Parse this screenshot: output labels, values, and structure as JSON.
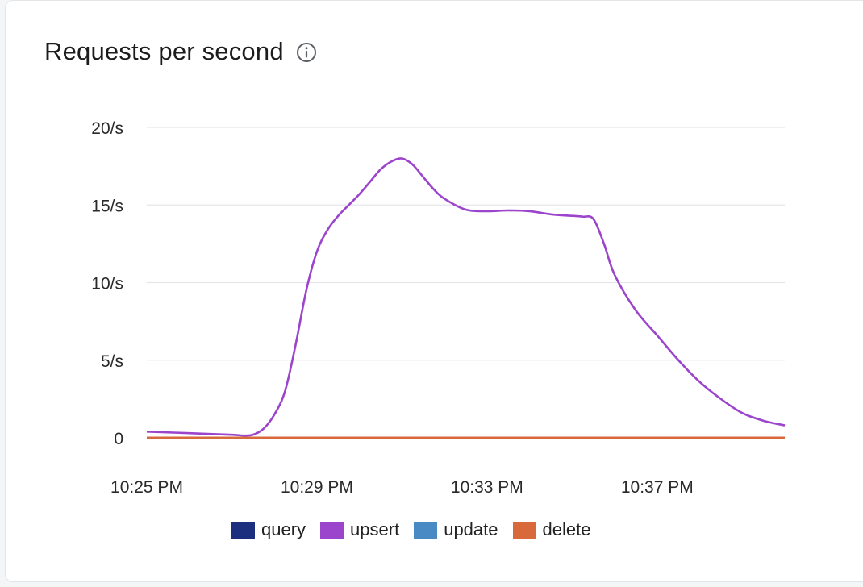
{
  "card": {
    "title": "Requests per second",
    "info_icon": "info-circle-icon"
  },
  "chart_data": {
    "type": "line",
    "title": "Requests per second",
    "xlabel": "",
    "ylabel": "",
    "x_ticks": [
      "10:25 PM",
      "10:29 PM",
      "10:33 PM",
      "10:37 PM"
    ],
    "y_ticks": [
      "0",
      "5/s",
      "10/s",
      "15/s",
      "20/s"
    ],
    "xlim_minutes_since_10_25": [
      0,
      15
    ],
    "ylim": [
      0,
      20
    ],
    "grid": true,
    "legend_position": "bottom",
    "series": [
      {
        "name": "query",
        "color": "#1b2f7e",
        "x": [
          0,
          15
        ],
        "y": [
          0,
          0
        ]
      },
      {
        "name": "upsert",
        "color": "#9b44cc",
        "x": [
          0,
          1,
          2,
          2.25,
          2.5,
          2.75,
          3,
          3.25,
          3.5,
          3.75,
          4,
          4.25,
          4.5,
          4.75,
          5,
          5.25,
          5.5,
          5.75,
          6,
          6.25,
          6.5,
          6.75,
          7,
          7.5,
          8,
          8.5,
          9,
          9.5,
          10,
          10.25,
          10.5,
          10.75,
          11,
          11.5,
          12,
          12.5,
          13,
          13.5,
          14,
          14.5,
          15
        ],
        "y": [
          0.4,
          0.3,
          0.2,
          0.15,
          0.2,
          0.6,
          1.5,
          3.0,
          6.0,
          9.5,
          12.0,
          13.4,
          14.3,
          15.0,
          15.7,
          16.5,
          17.3,
          17.8,
          18.0,
          17.6,
          16.8,
          16.0,
          15.4,
          14.7,
          14.6,
          14.65,
          14.6,
          14.4,
          14.3,
          14.25,
          14.1,
          12.5,
          10.5,
          8.2,
          6.6,
          5.0,
          3.6,
          2.5,
          1.6,
          1.1,
          0.8
        ]
      },
      {
        "name": "update",
        "color": "#4a8ac4",
        "x": [
          0,
          15
        ],
        "y": [
          0,
          0
        ]
      },
      {
        "name": "delete",
        "color": "#d8693a",
        "x": [
          0,
          15
        ],
        "y": [
          0,
          0
        ]
      }
    ]
  }
}
